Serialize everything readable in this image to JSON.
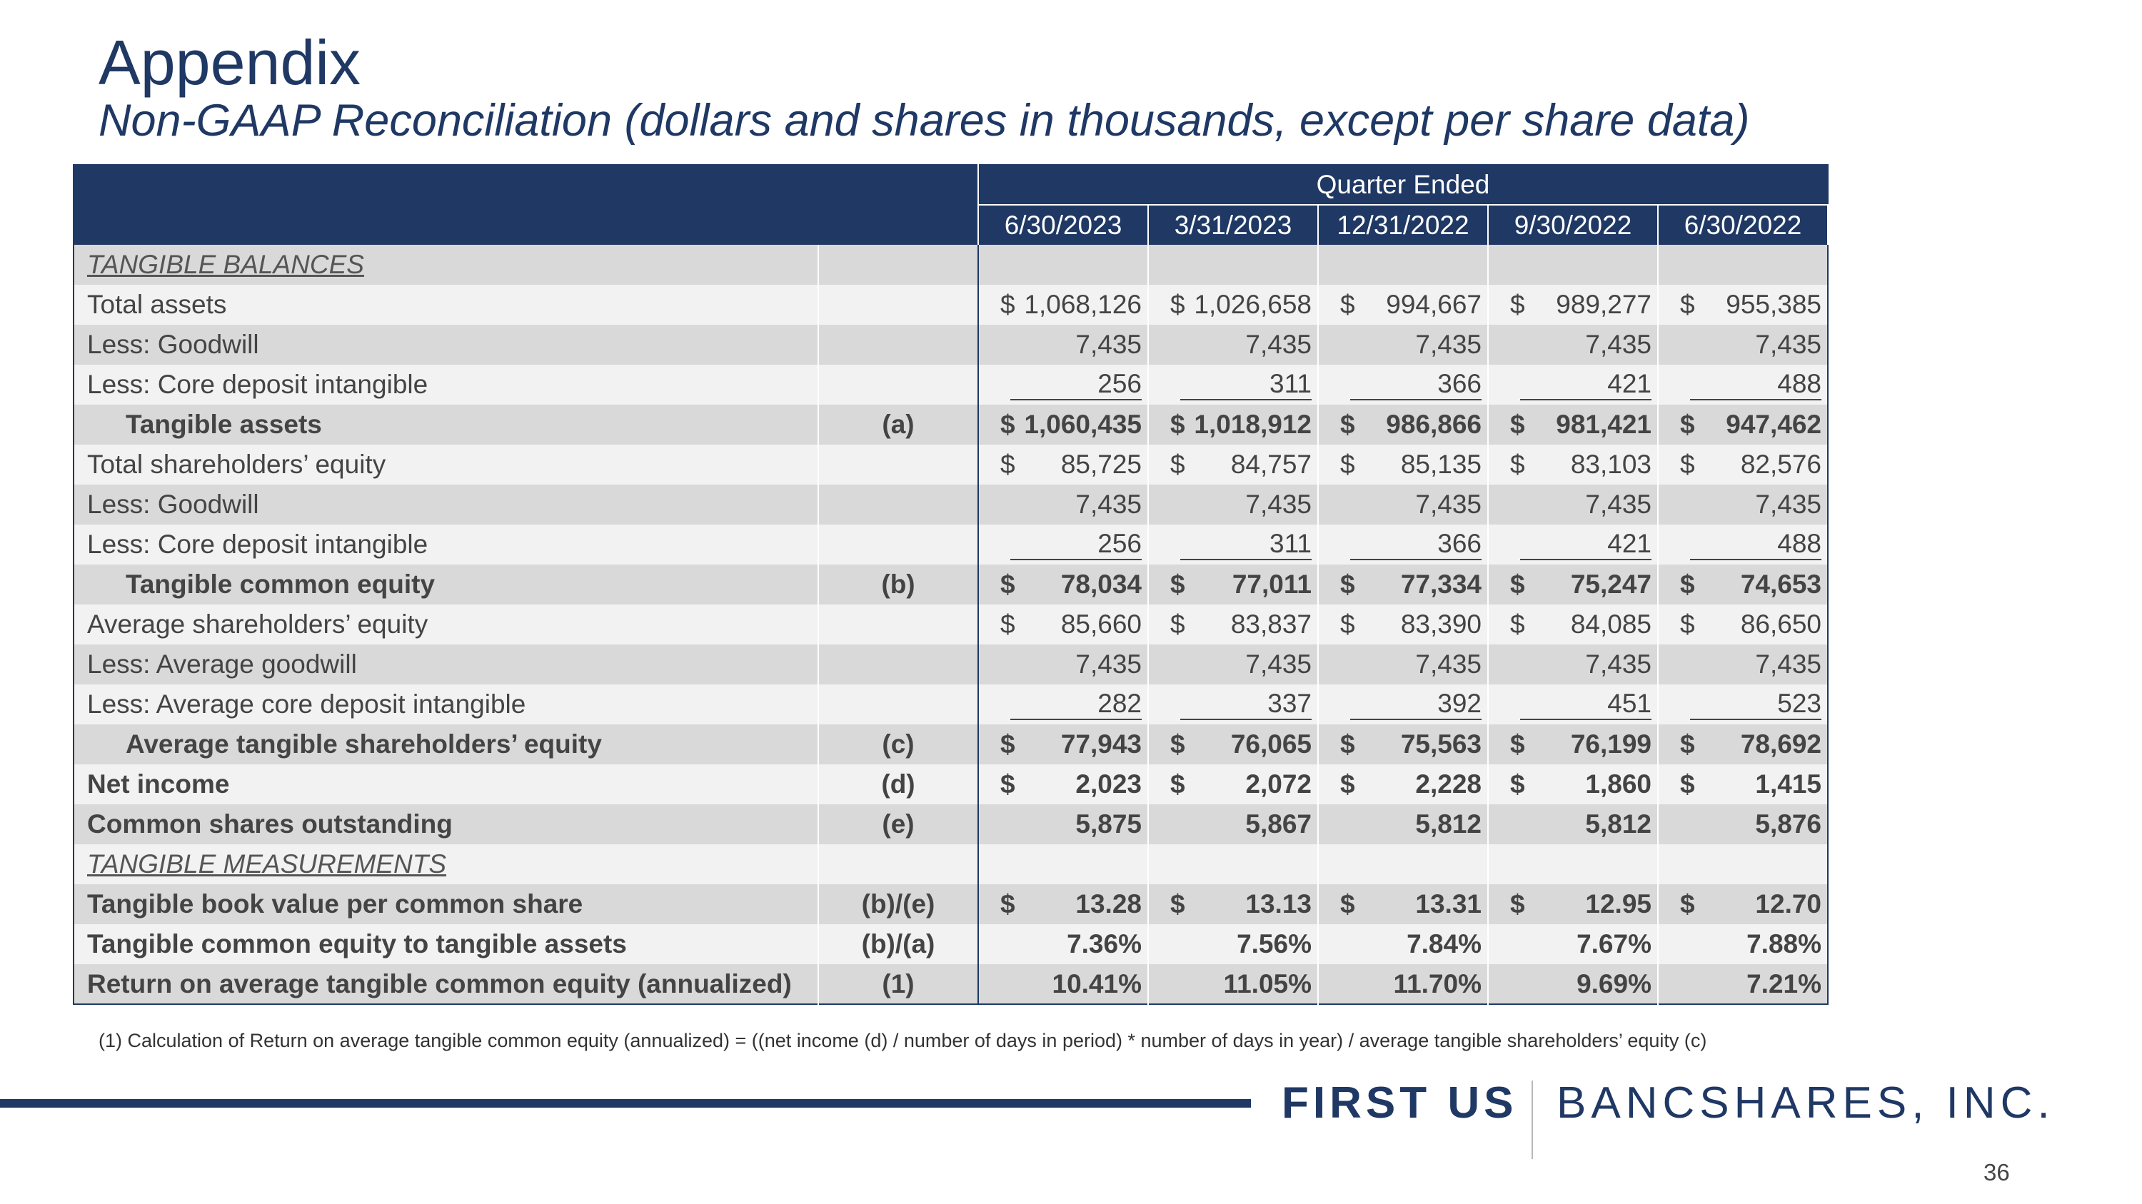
{
  "title": "Appendix",
  "subtitle": "Non-GAAP Reconciliation (dollars and shares in thousands, except per share data)",
  "table": {
    "group_header": "Quarter Ended",
    "periods": [
      "6/30/2023",
      "3/31/2023",
      "12/31/2022",
      "9/30/2022",
      "6/30/2022"
    ],
    "rows": [
      {
        "label": "TANGIBLE BALANCES",
        "ref": "",
        "cur": [
          "",
          "",
          "",
          "",
          ""
        ],
        "values": [
          "",
          "",
          "",
          "",
          ""
        ]
      },
      {
        "label": "Total assets",
        "ref": "",
        "cur": [
          "$",
          "$",
          "$",
          "$",
          "$"
        ],
        "values": [
          "1,068,126",
          "1,026,658",
          "994,667",
          "989,277",
          "955,385"
        ]
      },
      {
        "label": "Less: Goodwill",
        "ref": "",
        "cur": [
          "",
          "",
          "",
          "",
          ""
        ],
        "values": [
          "7,435",
          "7,435",
          "7,435",
          "7,435",
          "7,435"
        ]
      },
      {
        "label": "Less: Core deposit intangible",
        "ref": "",
        "cur": [
          "",
          "",
          "",
          "",
          ""
        ],
        "values": [
          "256",
          "311",
          "366",
          "421",
          "488"
        ]
      },
      {
        "label": "Tangible assets",
        "ref": "(a)",
        "cur": [
          "$",
          "$",
          "$",
          "$",
          "$"
        ],
        "values": [
          "1,060,435",
          "1,018,912",
          "986,866",
          "981,421",
          "947,462"
        ]
      },
      {
        "label": "Total shareholders’ equity",
        "ref": "",
        "cur": [
          "$",
          "$",
          "$",
          "$",
          "$"
        ],
        "values": [
          "85,725",
          "84,757",
          "85,135",
          "83,103",
          "82,576"
        ]
      },
      {
        "label": "Less: Goodwill",
        "ref": "",
        "cur": [
          "",
          "",
          "",
          "",
          ""
        ],
        "values": [
          "7,435",
          "7,435",
          "7,435",
          "7,435",
          "7,435"
        ]
      },
      {
        "label": "Less: Core deposit intangible",
        "ref": "",
        "cur": [
          "",
          "",
          "",
          "",
          ""
        ],
        "values": [
          "256",
          "311",
          "366",
          "421",
          "488"
        ]
      },
      {
        "label": "Tangible common equity",
        "ref": "(b)",
        "cur": [
          "$",
          "$",
          "$",
          "$",
          "$"
        ],
        "values": [
          "78,034",
          "77,011",
          "77,334",
          "75,247",
          "74,653"
        ]
      },
      {
        "label": "Average shareholders’ equity",
        "ref": "",
        "cur": [
          "$",
          "$",
          "$",
          "$",
          "$"
        ],
        "values": [
          "85,660",
          "83,837",
          "83,390",
          "84,085",
          "86,650"
        ]
      },
      {
        "label": "Less: Average goodwill",
        "ref": "",
        "cur": [
          "",
          "",
          "",
          "",
          ""
        ],
        "values": [
          "7,435",
          "7,435",
          "7,435",
          "7,435",
          "7,435"
        ]
      },
      {
        "label": "Less: Average core deposit intangible",
        "ref": "",
        "cur": [
          "",
          "",
          "",
          "",
          ""
        ],
        "values": [
          "282",
          "337",
          "392",
          "451",
          "523"
        ]
      },
      {
        "label": "Average tangible shareholders’ equity",
        "ref": "(c)",
        "cur": [
          "$",
          "$",
          "$",
          "$",
          "$"
        ],
        "values": [
          "77,943",
          "76,065",
          "75,563",
          "76,199",
          "78,692"
        ]
      },
      {
        "label": "Net income",
        "ref": "(d)",
        "cur": [
          "$",
          "$",
          "$",
          "$",
          "$"
        ],
        "values": [
          "2,023",
          "2,072",
          "2,228",
          "1,860",
          "1,415"
        ]
      },
      {
        "label": "Common shares outstanding",
        "ref": "(e)",
        "cur": [
          "",
          "",
          "",
          "",
          ""
        ],
        "values": [
          "5,875",
          "5,867",
          "5,812",
          "5,812",
          "5,876"
        ]
      },
      {
        "label": "TANGIBLE MEASUREMENTS",
        "ref": "",
        "cur": [
          "",
          "",
          "",
          "",
          ""
        ],
        "values": [
          "",
          "",
          "",
          "",
          ""
        ]
      },
      {
        "label": "Tangible book value per common share",
        "ref": "(b)/(e)",
        "cur": [
          "$",
          "$",
          "$",
          "$",
          "$"
        ],
        "values": [
          "13.28",
          "13.13",
          "13.31",
          "12.95",
          "12.70"
        ]
      },
      {
        "label": "Tangible common equity to tangible assets",
        "ref": "(b)/(a)",
        "cur": [
          "",
          "",
          "",
          "",
          ""
        ],
        "values": [
          "7.36%",
          "7.56%",
          "7.84%",
          "7.67%",
          "7.88%"
        ]
      },
      {
        "label": "Return on average tangible common equity (annualized)",
        "ref": "(1)",
        "cur": [
          "",
          "",
          "",
          "",
          ""
        ],
        "values": [
          "10.41%",
          "11.05%",
          "11.70%",
          "9.69%",
          "7.21%"
        ]
      }
    ]
  },
  "footnote": "(1) Calculation of Return on average tangible common equity (annualized) = ((net income (d) / number of days in period) * number of days in year) / average tangible shareholders’ equity (c)",
  "logo": {
    "part1": "FIRST US",
    "part2": "BANCSHARES, INC."
  },
  "page_number": "36",
  "colors": {
    "navy": "#1f3864",
    "row_dark": "#d9d9d9",
    "row_light": "#f2f2f2"
  }
}
